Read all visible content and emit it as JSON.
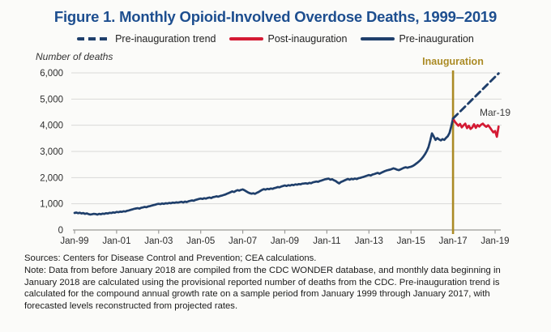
{
  "title": {
    "text": "Figure 1. Monthly Opioid-Involved Overdose Deaths, 1999–2019",
    "color": "#1d4e8f"
  },
  "legend": {
    "items": [
      {
        "label": "Pre-inauguration trend",
        "style": "dashed",
        "color": "#1f3f6b"
      },
      {
        "label": "Post-inauguration",
        "style": "solid",
        "color": "#d41a33"
      },
      {
        "label": "Pre-inauguration",
        "style": "solid",
        "color": "#1f3f6b"
      }
    ]
  },
  "labels": {
    "y_axis_title": "Number of deaths",
    "inauguration": "Inauguration",
    "endpoint": "Mar-19"
  },
  "notes": {
    "sources": "Sources: Centers for Disease Control and Prevention; CEA calculations.",
    "note": "Note: Data from before January 2018 are compiled from the CDC WONDER database, and monthly data beginning in January 2018 are calculated using the provisional reported number of deaths from the CDC. Pre-inauguration trend is calculated for the compound annual growth rate on a sample period from January 1999 through January 2017, with forecasted levels reconstructed from projected rates."
  },
  "chart_data": {
    "type": "line",
    "title": "Figure 1. Monthly Opioid-Involved Overdose Deaths, 1999–2019",
    "ylabel": "Number of deaths",
    "xlabel": "",
    "ylim": [
      0,
      6000
    ],
    "grid": "horizontal",
    "legend_position": "top",
    "frequency": "monthly",
    "x_tick_labels": [
      "Jan-99",
      "Jan-01",
      "Jan-03",
      "Jan-05",
      "Jan-07",
      "Jan-09",
      "Jan-11",
      "Jan-13",
      "Jan-15",
      "Jan-17",
      "Jan-19"
    ],
    "y_ticks": [
      {
        "value": 0,
        "label": "0"
      },
      {
        "value": 1000,
        "label": "1,000"
      },
      {
        "value": 2000,
        "label": "2,000"
      },
      {
        "value": 3000,
        "label": "3,000"
      },
      {
        "value": 4000,
        "label": "4,000"
      },
      {
        "value": 5000,
        "label": "5,000"
      },
      {
        "value": 6000,
        "label": "6,000"
      }
    ],
    "annotations": {
      "vline": {
        "x": "Jan-2017",
        "label": "Inauguration",
        "color": "#ab8b25"
      },
      "point_label": {
        "text": "Mar-19",
        "x": "Mar-2019"
      }
    },
    "colors": {
      "pre_inauguration": "#1f3f6b",
      "post_inauguration": "#d41a33",
      "trend": "#1f3f6b",
      "vline": "#ab8b25",
      "gridline": "#d9d9d7",
      "axis": "#9b9b98",
      "title": "#1d4e8f"
    },
    "series": [
      {
        "name": "Pre-inauguration",
        "style": "solid",
        "color": "#1f3f6b",
        "start_month": "Jan-1999",
        "values": [
          650,
          665,
          640,
          660,
          630,
          645,
          615,
          635,
          605,
          590,
          600,
          615,
          610,
          588,
          615,
          600,
          625,
          615,
          640,
          632,
          655,
          645,
          670,
          660,
          690,
          676,
          700,
          692,
          716,
          706,
          732,
          746,
          766,
          786,
          806,
          820,
          832,
          816,
          846,
          860,
          880,
          870,
          896,
          910,
          930,
          950,
          966,
          986,
          1000,
          986,
          1010,
          996,
          1022,
          1010,
          1032,
          1022,
          1046,
          1036,
          1056,
          1046,
          1062,
          1076,
          1052,
          1082,
          1066,
          1096,
          1110,
          1130,
          1116,
          1146,
          1166,
          1186,
          1200,
          1186,
          1212,
          1196,
          1226,
          1240,
          1220,
          1252,
          1266,
          1286,
          1270,
          1296,
          1312,
          1332,
          1356,
          1382,
          1412,
          1442,
          1472,
          1452,
          1492,
          1522,
          1502,
          1532,
          1550,
          1515,
          1475,
          1435,
          1405,
          1385,
          1400,
          1380,
          1420,
          1450,
          1490,
          1530,
          1560,
          1540,
          1570,
          1555,
          1585,
          1570,
          1600,
          1615,
          1640,
          1630,
          1660,
          1680,
          1700,
          1680,
          1710,
          1695,
          1725,
          1710,
          1740,
          1730,
          1755,
          1745,
          1770,
          1775,
          1785,
          1770,
          1800,
          1785,
          1820,
          1835,
          1850,
          1840,
          1870,
          1890,
          1915,
          1935,
          1950,
          1960,
          1920,
          1940,
          1900,
          1870,
          1820,
          1780,
          1830,
          1860,
          1890,
          1920,
          1950,
          1920,
          1955,
          1935,
          1965,
          1945,
          1975,
          1990,
          2010,
          2030,
          2055,
          2075,
          2100,
          2080,
          2115,
          2135,
          2160,
          2180,
          2150,
          2185,
          2215,
          2245,
          2270,
          2290,
          2305,
          2325,
          2355,
          2335,
          2305,
          2285,
          2315,
          2345,
          2375,
          2395,
          2375,
          2400,
          2415,
          2445,
          2485,
          2535,
          2585,
          2645,
          2715,
          2795,
          2895,
          3015,
          3165,
          3415,
          3690,
          3570,
          3440,
          3510,
          3460,
          3420,
          3470,
          3440,
          3520,
          3580,
          3710,
          3960,
          4255
        ]
      },
      {
        "name": "Post-inauguration",
        "style": "solid",
        "color": "#d41a33",
        "start_month": "Jan-2017",
        "values": [
          4255,
          4140,
          4060,
          3980,
          4050,
          3920,
          4000,
          4060,
          3890,
          3980,
          3860,
          3920,
          4040,
          3900,
          4010,
          3950,
          4020,
          4060,
          3990,
          3940,
          4000,
          3920,
          3820,
          3730,
          3780,
          3560,
          3950
        ]
      },
      {
        "name": "Pre-inauguration trend",
        "style": "dashed",
        "color": "#1f3f6b",
        "points": [
          {
            "month": "Jan-2017",
            "value": 4255
          },
          {
            "month": "Mar-2019",
            "value": 5980
          }
        ]
      }
    ]
  }
}
